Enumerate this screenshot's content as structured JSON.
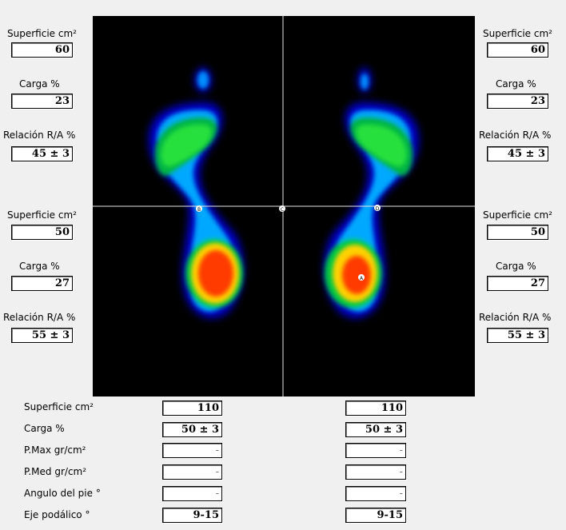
{
  "side_panels": {
    "left": {
      "upper": {
        "surface_label": "Superficie cm²",
        "surface_value": "60",
        "load_label": "Carga %",
        "load_value": "23",
        "ratio_label": "Relación R/A %",
        "ratio_value": "45 ± 3"
      },
      "lower": {
        "surface_label": "Superficie cm²",
        "surface_value": "50",
        "load_label": "Carga %",
        "load_value": "27",
        "ratio_label": "Relación R/A %",
        "ratio_value": "55 ± 3"
      }
    },
    "right": {
      "upper": {
        "surface_label": "Superficie cm²",
        "surface_value": "60",
        "load_label": "Carga %",
        "load_value": "23",
        "ratio_label": "Relación R/A %",
        "ratio_value": "45 ± 3"
      },
      "lower": {
        "surface_label": "Superficie cm²",
        "surface_value": "50",
        "load_label": "Carga %",
        "load_value": "27",
        "ratio_label": "Relación R/A %",
        "ratio_value": "55 ± 3"
      }
    }
  },
  "plate_markers": {
    "left_axis": "B",
    "center": "C",
    "right_axis": "D",
    "peak": "A"
  },
  "summary": {
    "rows": [
      {
        "label": "Superficie cm²",
        "left": "110",
        "right": "110"
      },
      {
        "label": "Carga %",
        "left": "50 ± 3",
        "right": "50 ± 3"
      },
      {
        "label": "P.Max gr/cm²",
        "left": "-",
        "right": "-"
      },
      {
        "label": "P.Med gr/cm²",
        "left": "-",
        "right": "-"
      },
      {
        "label": "Angulo del pie °",
        "left": "-",
        "right": "-"
      },
      {
        "label": "Eje podálico °",
        "left": "9-15",
        "right": "9-15"
      }
    ]
  },
  "heatmap_colors": {
    "low": "#0000c8",
    "mid_low": "#00a0ff",
    "mid": "#00dc3c",
    "high": "#ffd200",
    "peak": "#ff2a00"
  }
}
